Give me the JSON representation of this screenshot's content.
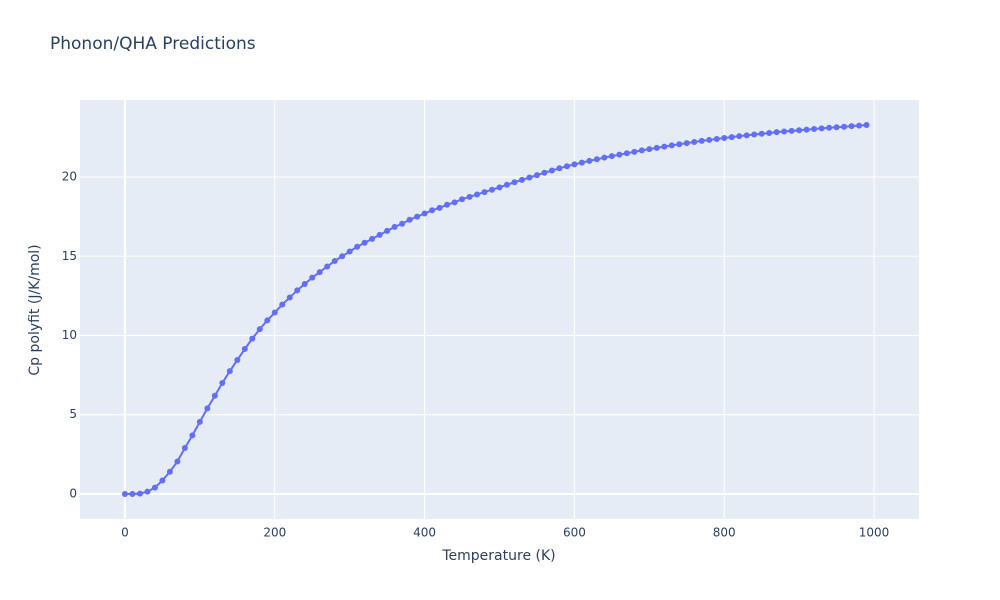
{
  "chart_data": {
    "type": "line",
    "title": "Phonon/QHA Predictions",
    "x_label": "Temperature (K)",
    "y_label": "Cp polyfit (J/K/mol)",
    "color": "#636efa",
    "grid": true,
    "xlim": [
      -60,
      1060
    ],
    "ylim": [
      -1.58,
      24.86
    ],
    "xticks": [
      0,
      200,
      400,
      600,
      800,
      1000
    ],
    "yticks": [
      0,
      5,
      10,
      15,
      20
    ],
    "x": [
      0,
      10,
      20,
      30,
      40,
      50,
      60,
      70,
      80,
      90,
      100,
      110,
      120,
      130,
      140,
      150,
      160,
      170,
      180,
      190,
      200,
      210,
      220,
      230,
      240,
      250,
      260,
      270,
      280,
      290,
      300,
      310,
      320,
      330,
      340,
      350,
      360,
      370,
      380,
      390,
      400,
      410,
      420,
      430,
      440,
      450,
      460,
      470,
      480,
      490,
      500,
      510,
      520,
      530,
      540,
      550,
      560,
      570,
      580,
      590,
      600,
      610,
      620,
      630,
      640,
      650,
      660,
      670,
      680,
      690,
      700,
      710,
      720,
      730,
      740,
      750,
      760,
      770,
      780,
      790,
      800,
      810,
      820,
      830,
      840,
      850,
      860,
      870,
      880,
      890,
      900,
      910,
      920,
      930,
      940,
      950,
      960,
      970,
      980,
      990
    ],
    "values": [
      0,
      0,
      0.02,
      0.15,
      0.4,
      0.85,
      1.4,
      2.05,
      2.9,
      3.7,
      4.55,
      5.4,
      6.2,
      7.0,
      7.75,
      8.45,
      9.15,
      9.8,
      10.4,
      10.95,
      11.45,
      11.95,
      12.4,
      12.85,
      13.25,
      13.65,
      14.0,
      14.35,
      14.7,
      15.0,
      15.3,
      15.6,
      15.85,
      16.1,
      16.35,
      16.6,
      16.85,
      17.05,
      17.3,
      17.5,
      17.7,
      17.9,
      18.05,
      18.25,
      18.4,
      18.6,
      18.75,
      18.9,
      19.05,
      19.2,
      19.35,
      19.51,
      19.67,
      19.82,
      19.97,
      20.12,
      20.27,
      20.41,
      20.55,
      20.68,
      20.8,
      20.91,
      21.02,
      21.12,
      21.22,
      21.32,
      21.41,
      21.5,
      21.59,
      21.68,
      21.76,
      21.84,
      21.92,
      22.0,
      22.07,
      22.14,
      22.21,
      22.28,
      22.34,
      22.4,
      22.46,
      22.52,
      22.58,
      22.63,
      22.68,
      22.73,
      22.78,
      22.83,
      22.87,
      22.91,
      22.95,
      22.99,
      23.03,
      23.07,
      23.11,
      23.14,
      23.17,
      23.21,
      23.24,
      23.28
    ]
  }
}
